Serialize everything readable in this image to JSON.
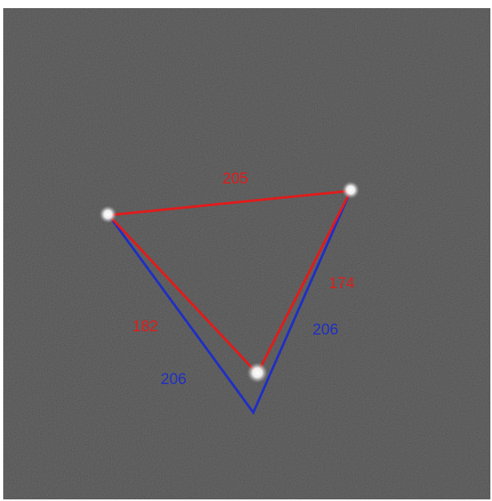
{
  "colors": {
    "background": "#323232",
    "red_triangle": "#e21b1b",
    "blue_triangle": "#1f2fc4",
    "dot": "#ffffff"
  },
  "measurements": {
    "red_top": "205",
    "red_right": "174",
    "red_left": "182",
    "blue_right": "206",
    "blue_left": "206"
  }
}
